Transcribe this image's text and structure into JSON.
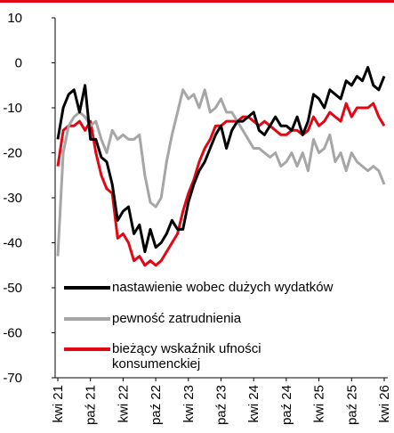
{
  "chart_data": {
    "type": "line",
    "categories": [
      "kwi 21",
      null,
      null,
      null,
      null,
      null,
      "paź 21",
      null,
      null,
      null,
      null,
      null,
      "kwi 22",
      null,
      null,
      null,
      null,
      null,
      "paź 22",
      null,
      null,
      null,
      null,
      null,
      "kwi 23",
      null,
      null,
      null,
      null,
      null,
      "paź 23",
      null,
      null,
      null,
      null,
      null,
      "kwi 24",
      null,
      null,
      null,
      null,
      null,
      "paź 24",
      null,
      null,
      null,
      null,
      null,
      "kwi 25",
      null,
      null,
      null,
      null,
      null,
      "paź 25",
      null,
      null,
      null,
      null,
      null,
      "kwi 26"
    ],
    "series": [
      {
        "name": "nastawienie wobec dużych wydatków",
        "color": "#000000",
        "values": [
          -17,
          -10,
          -7,
          -6,
          -11,
          -5,
          -17,
          -17,
          -21,
          -22,
          -27,
          -35,
          -33,
          -32,
          -38,
          -36,
          -42,
          -37,
          -41,
          -40,
          -38,
          -35,
          -37,
          -37,
          -31,
          -27,
          -24,
          -22,
          -19,
          -16,
          -14,
          -19,
          -15,
          -13,
          -13,
          -12,
          -11,
          -15,
          -16,
          -14,
          -12,
          -14,
          -14,
          -15,
          -12,
          -16,
          -13,
          -7,
          -8,
          -10,
          -6,
          -7,
          -8,
          -4,
          -5,
          -3,
          -4,
          -1,
          -5,
          -6,
          -3
        ]
      },
      {
        "name": "pewność zatrudnienia",
        "color": "#a6a6a6",
        "values": [
          -43,
          -20,
          -14,
          -12,
          -11,
          -12,
          -14,
          -13,
          -17,
          -20,
          -15,
          -17,
          -16,
          -17,
          -17,
          -16,
          -25,
          -31,
          -32,
          -30,
          -22,
          -16,
          -11,
          -6,
          -8,
          -7,
          -10,
          -6,
          -11,
          -10,
          -8,
          -11,
          -11,
          -13,
          -15,
          -17,
          -19,
          -19,
          -20,
          -21,
          -20,
          -23,
          -22,
          -20,
          -23,
          -20,
          -24,
          -17,
          -20,
          -19,
          -16,
          -22,
          -20,
          -24,
          -20,
          -22,
          -23,
          -24,
          -23,
          -24,
          -27
        ]
      },
      {
        "name": "bieżący wskaźnik ufności konsumenckiej",
        "color": "#e30613",
        "values": [
          -23,
          -15,
          -14,
          -14,
          -13,
          -15,
          -13,
          -20,
          -25,
          -28,
          -29,
          -39,
          -38,
          -40,
          -44,
          -43,
          -45,
          -44,
          -45,
          -44,
          -42,
          -40,
          -38,
          -33,
          -29,
          -26,
          -22,
          -19,
          -17,
          -14,
          -14,
          -13,
          -13,
          -13,
          -12,
          -12,
          -13,
          -14,
          -13,
          -14,
          -15,
          -16,
          -16,
          -15,
          -15,
          -16,
          -15,
          -12,
          -14,
          -13,
          -11,
          -12,
          -13,
          -9,
          -12,
          -10,
          -10,
          -10,
          -9,
          -12,
          -14
        ]
      }
    ],
    "ylim": [
      -70,
      10
    ],
    "yticks": [
      -70,
      -60,
      -50,
      -40,
      -30,
      -20,
      -10,
      0,
      10
    ]
  }
}
